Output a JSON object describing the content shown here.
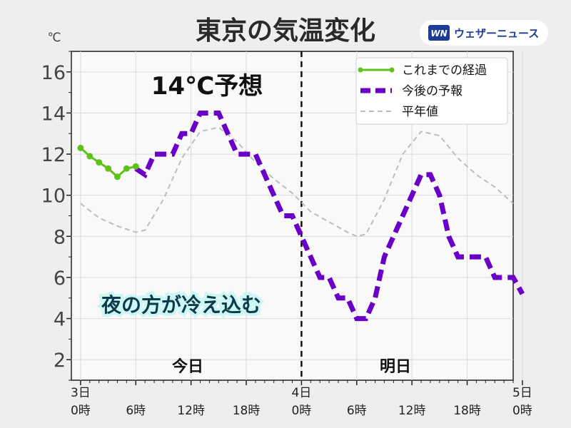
{
  "header": {
    "title": "東京の気温変化",
    "unit": "℃",
    "brand": {
      "mark": "WN",
      "text": "ウェザーニュース"
    }
  },
  "chart_data": {
    "type": "line",
    "title": "東京の気温変化",
    "ylabel": "℃",
    "ylim": [
      1,
      17
    ],
    "yticks": [
      "2",
      "4",
      "6",
      "8",
      "10",
      "12",
      "14",
      "16"
    ],
    "xlim": [
      -1,
      47
    ],
    "xticks": [
      {
        "x": 0,
        "line1": "3日",
        "line2": "0時"
      },
      {
        "x": 6,
        "line1": "",
        "line2": "6時"
      },
      {
        "x": 12,
        "line1": "",
        "line2": "12時"
      },
      {
        "x": 18,
        "line1": "",
        "line2": "18時"
      },
      {
        "x": 24,
        "line1": "4日",
        "line2": "0時"
      },
      {
        "x": 30,
        "line1": "",
        "line2": "6時"
      },
      {
        "x": 36,
        "line1": "",
        "line2": "12時"
      },
      {
        "x": 42,
        "line1": "",
        "line2": "18時"
      },
      {
        "x": 48,
        "line1": "5日",
        "line2": "0時"
      }
    ],
    "divider_x": 24,
    "grid": true,
    "legend_position": "top-right",
    "series": [
      {
        "name": "これまでの経過",
        "color": "#5ec21b",
        "style": "solid-markers",
        "x": [
          0,
          1,
          2,
          3,
          4,
          5,
          6
        ],
        "y": [
          12.3,
          11.9,
          11.6,
          11.3,
          10.9,
          11.3,
          11.4
        ]
      },
      {
        "name": "今後の予報",
        "color": "#6a00c8",
        "style": "dashed-thick",
        "x": [
          6,
          7,
          8,
          9,
          10,
          11,
          12,
          13,
          14,
          15,
          16,
          17,
          18,
          19,
          20,
          21,
          22,
          23,
          24,
          25,
          26,
          27,
          28,
          29,
          30,
          31,
          32,
          33,
          34,
          35,
          36,
          37,
          38,
          39,
          40,
          41,
          42,
          43,
          44,
          45,
          46,
          47,
          48
        ],
        "y": [
          11.3,
          11.0,
          12.0,
          12.0,
          12.0,
          13.0,
          13.0,
          14.0,
          14.0,
          14.0,
          13.0,
          12.0,
          12.0,
          12.0,
          11.0,
          10.0,
          9.0,
          9.0,
          8.0,
          7.0,
          6.0,
          6.0,
          5.0,
          5.0,
          4.0,
          4.0,
          5.0,
          7.0,
          8.0,
          9.0,
          10.0,
          11.0,
          11.0,
          10.0,
          8.0,
          7.0,
          7.0,
          7.0,
          7.0,
          6.0,
          6.0,
          6.0,
          5.2
        ]
      },
      {
        "name": "平年値",
        "color": "#bdbdbd",
        "style": "dashed-thin",
        "x": [
          0,
          2,
          4,
          6,
          7,
          9,
          11,
          13,
          15,
          17,
          19,
          21,
          23,
          25,
          27,
          29,
          30,
          31,
          33,
          35,
          37,
          39,
          41,
          43,
          45,
          47
        ],
        "y": [
          9.6,
          8.9,
          8.5,
          8.2,
          8.3,
          9.8,
          11.8,
          13.1,
          13.3,
          12.6,
          11.6,
          10.8,
          10.1,
          9.2,
          8.7,
          8.2,
          8.0,
          8.1,
          9.8,
          12.0,
          13.1,
          12.9,
          11.8,
          11.0,
          10.4,
          9.6
        ]
      }
    ],
    "annotations": [
      {
        "id": "forecast",
        "text": "14℃予想"
      },
      {
        "id": "comment",
        "text": "夜の方が冷え込む"
      },
      {
        "id": "today",
        "text": "今日"
      },
      {
        "id": "tomorrow",
        "text": "明日"
      }
    ]
  }
}
